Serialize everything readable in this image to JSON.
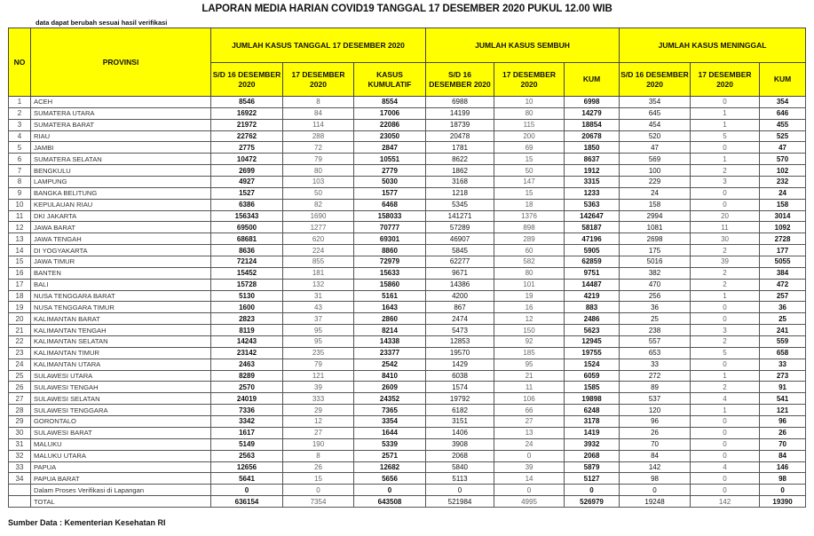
{
  "title": "LAPORAN MEDIA HARIAN COVID19 TANGGAL 17 DESEMBER 2020 PUKUL 12.00 WIB",
  "note": "data dapat berubah sesuai hasil verifikasi",
  "footer": "Sumber Data : Kementerian Kesehatan RI",
  "header": {
    "no": "NO",
    "provinsi": "PROVINSI",
    "group_kasus": "JUMLAH KASUS TANGGAL 17 DESEMBER 2020",
    "group_sembuh": "JUMLAH KASUS SEMBUH",
    "group_meninggal": "JUMLAH KASUS MENINGGAL",
    "sub": [
      "S/D 16 DESEMBER 2020",
      "17 DESEMBER 2020",
      "KASUS KUMULATIF",
      "S/D 16 DESEMBER 2020",
      "17 DESEMBER 2020",
      "KUM",
      "S/D 16 DESEMBER 2020",
      "17 DESEMBER 2020",
      "KUM"
    ]
  },
  "rows": [
    [
      "1",
      "ACEH",
      "8546",
      "8",
      "8554",
      "6988",
      "10",
      "6998",
      "354",
      "0",
      "354"
    ],
    [
      "2",
      "SUMATERA UTARA",
      "16922",
      "84",
      "17006",
      "14199",
      "80",
      "14279",
      "645",
      "1",
      "646"
    ],
    [
      "3",
      "SUMATERA BARAT",
      "21972",
      "114",
      "22086",
      "18739",
      "115",
      "18854",
      "454",
      "1",
      "455"
    ],
    [
      "4",
      "RIAU",
      "22762",
      "288",
      "23050",
      "20478",
      "200",
      "20678",
      "520",
      "5",
      "525"
    ],
    [
      "5",
      "JAMBI",
      "2775",
      "72",
      "2847",
      "1781",
      "69",
      "1850",
      "47",
      "0",
      "47"
    ],
    [
      "6",
      "SUMATERA SELATAN",
      "10472",
      "79",
      "10551",
      "8622",
      "15",
      "8637",
      "569",
      "1",
      "570"
    ],
    [
      "7",
      "BENGKULU",
      "2699",
      "80",
      "2779",
      "1862",
      "50",
      "1912",
      "100",
      "2",
      "102"
    ],
    [
      "8",
      "LAMPUNG",
      "4927",
      "103",
      "5030",
      "3168",
      "147",
      "3315",
      "229",
      "3",
      "232"
    ],
    [
      "9",
      "BANGKA BELITUNG",
      "1527",
      "50",
      "1577",
      "1218",
      "15",
      "1233",
      "24",
      "0",
      "24"
    ],
    [
      "10",
      "KEPULAUAN RIAU",
      "6386",
      "82",
      "6468",
      "5345",
      "18",
      "5363",
      "158",
      "0",
      "158"
    ],
    [
      "11",
      "DKI JAKARTA",
      "156343",
      "1690",
      "158033",
      "141271",
      "1376",
      "142647",
      "2994",
      "20",
      "3014"
    ],
    [
      "12",
      "JAWA BARAT",
      "69500",
      "1277",
      "70777",
      "57289",
      "898",
      "58187",
      "1081",
      "11",
      "1092"
    ],
    [
      "13",
      "JAWA TENGAH",
      "68681",
      "620",
      "69301",
      "46907",
      "289",
      "47196",
      "2698",
      "30",
      "2728"
    ],
    [
      "14",
      "DI YOGYAKARTA",
      "8636",
      "224",
      "8860",
      "5845",
      "60",
      "5905",
      "175",
      "2",
      "177"
    ],
    [
      "15",
      "JAWA TIMUR",
      "72124",
      "855",
      "72979",
      "62277",
      "582",
      "62859",
      "5016",
      "39",
      "5055"
    ],
    [
      "16",
      "BANTEN",
      "15452",
      "181",
      "15633",
      "9671",
      "80",
      "9751",
      "382",
      "2",
      "384"
    ],
    [
      "17",
      "BALI",
      "15728",
      "132",
      "15860",
      "14386",
      "101",
      "14487",
      "470",
      "2",
      "472"
    ],
    [
      "18",
      "NUSA TENGGARA BARAT",
      "5130",
      "31",
      "5161",
      "4200",
      "19",
      "4219",
      "256",
      "1",
      "257"
    ],
    [
      "19",
      "NUSA TENGGARA TIMUR",
      "1600",
      "43",
      "1643",
      "867",
      "16",
      "883",
      "36",
      "0",
      "36"
    ],
    [
      "20",
      "KALIMANTAN BARAT",
      "2823",
      "37",
      "2860",
      "2474",
      "12",
      "2486",
      "25",
      "0",
      "25"
    ],
    [
      "21",
      "KALIMANTAN TENGAH",
      "8119",
      "95",
      "8214",
      "5473",
      "150",
      "5623",
      "238",
      "3",
      "241"
    ],
    [
      "22",
      "KALIMANTAN SELATAN",
      "14243",
      "95",
      "14338",
      "12853",
      "92",
      "12945",
      "557",
      "2",
      "559"
    ],
    [
      "23",
      "KALIMANTAN TIMUR",
      "23142",
      "235",
      "23377",
      "19570",
      "185",
      "19755",
      "653",
      "5",
      "658"
    ],
    [
      "24",
      "KALIMANTAN UTARA",
      "2463",
      "79",
      "2542",
      "1429",
      "95",
      "1524",
      "33",
      "0",
      "33"
    ],
    [
      "25",
      "SULAWESI UTARA",
      "8289",
      "121",
      "8410",
      "6038",
      "21",
      "6059",
      "272",
      "1",
      "273"
    ],
    [
      "26",
      "SULAWESI TENGAH",
      "2570",
      "39",
      "2609",
      "1574",
      "11",
      "1585",
      "89",
      "2",
      "91"
    ],
    [
      "27",
      "SULAWESI SELATAN",
      "24019",
      "333",
      "24352",
      "19792",
      "106",
      "19898",
      "537",
      "4",
      "541"
    ],
    [
      "28",
      "SULAWESI TENGGARA",
      "7336",
      "29",
      "7365",
      "6182",
      "66",
      "6248",
      "120",
      "1",
      "121"
    ],
    [
      "29",
      "GORONTALO",
      "3342",
      "12",
      "3354",
      "3151",
      "27",
      "3178",
      "96",
      "0",
      "96"
    ],
    [
      "30",
      "SULAWESI BARAT",
      "1617",
      "27",
      "1644",
      "1406",
      "13",
      "1419",
      "26",
      "0",
      "26"
    ],
    [
      "31",
      "MALUKU",
      "5149",
      "190",
      "5339",
      "3908",
      "24",
      "3932",
      "70",
      "0",
      "70"
    ],
    [
      "32",
      "MALUKU UTARA",
      "2563",
      "8",
      "2571",
      "2068",
      "0",
      "2068",
      "84",
      "0",
      "84"
    ],
    [
      "33",
      "PAPUA",
      "12656",
      "26",
      "12682",
      "5840",
      "39",
      "5879",
      "142",
      "4",
      "146"
    ],
    [
      "34",
      "PAPUA BARAT",
      "5641",
      "15",
      "5656",
      "5113",
      "14",
      "5127",
      "98",
      "0",
      "98"
    ],
    [
      "",
      "Dalam Proses Verifikasi di Lapangan",
      "0",
      "0",
      "0",
      "0",
      "0",
      "0",
      "0",
      "0",
      "0"
    ],
    [
      "",
      "TOTAL",
      "636154",
      "7354",
      "643508",
      "521984",
      "4995",
      "526979",
      "19248",
      "142",
      "19390"
    ]
  ]
}
